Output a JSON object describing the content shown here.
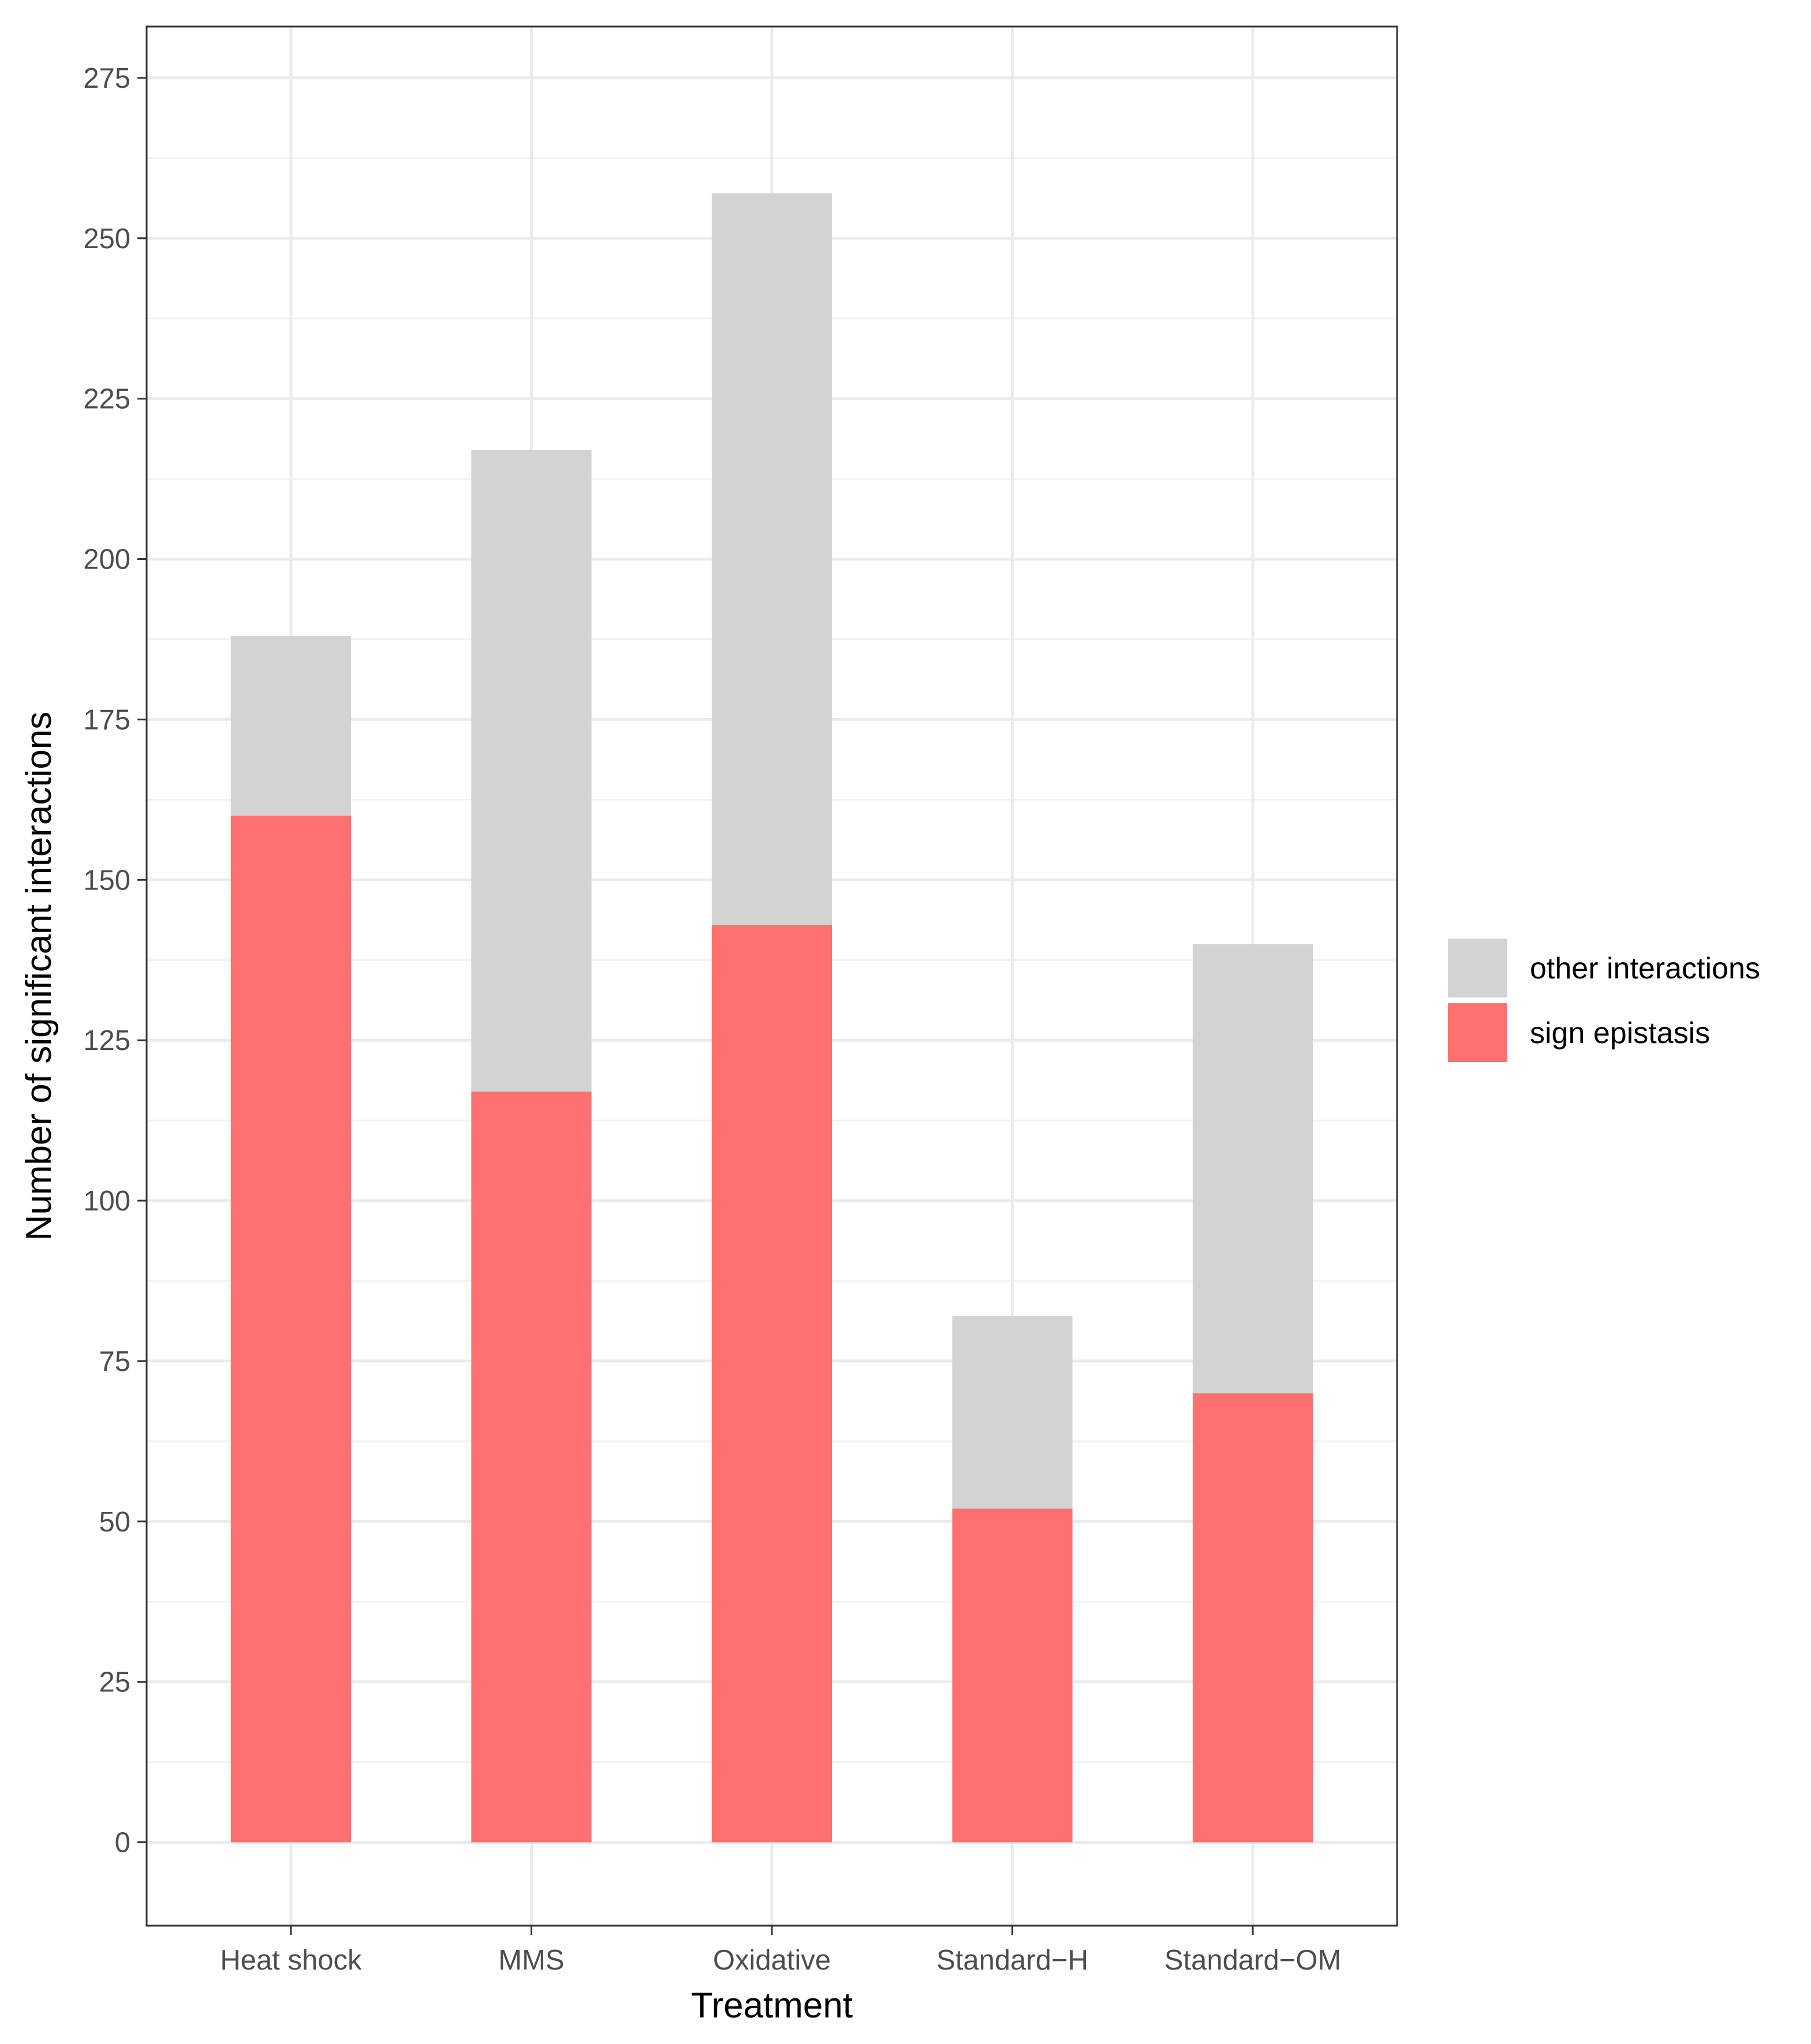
{
  "chart_data": {
    "type": "bar",
    "stacked": true,
    "title": "",
    "xlabel": "Treatment",
    "ylabel": "Number of significant interactions",
    "categories": [
      "Heat shock",
      "MMS",
      "Oxidative",
      "Standard−H",
      "Standard−OM"
    ],
    "series": [
      {
        "name": "sign epistasis",
        "color": "#ff7070",
        "values": [
          160,
          117,
          143,
          52,
          70
        ]
      },
      {
        "name": "other interactions",
        "color": "#d3d3d3",
        "values": [
          28,
          100,
          114,
          30,
          70
        ]
      }
    ],
    "totals": [
      188,
      217,
      257,
      82,
      140
    ],
    "ylim": [
      -13,
      283
    ],
    "y_ticks": [
      0,
      25,
      50,
      75,
      100,
      125,
      150,
      175,
      200,
      225,
      250,
      275
    ],
    "y_tick_labels": [
      "0",
      "25",
      "50",
      "75",
      "100",
      "125",
      "150",
      "175",
      "200",
      "225",
      "250",
      "275"
    ],
    "grid": true,
    "legend": {
      "position": "right",
      "entries": [
        {
          "label": "other interactions",
          "color": "#d3d3d3"
        },
        {
          "label": "sign epistasis",
          "color": "#ff7070"
        }
      ]
    }
  }
}
